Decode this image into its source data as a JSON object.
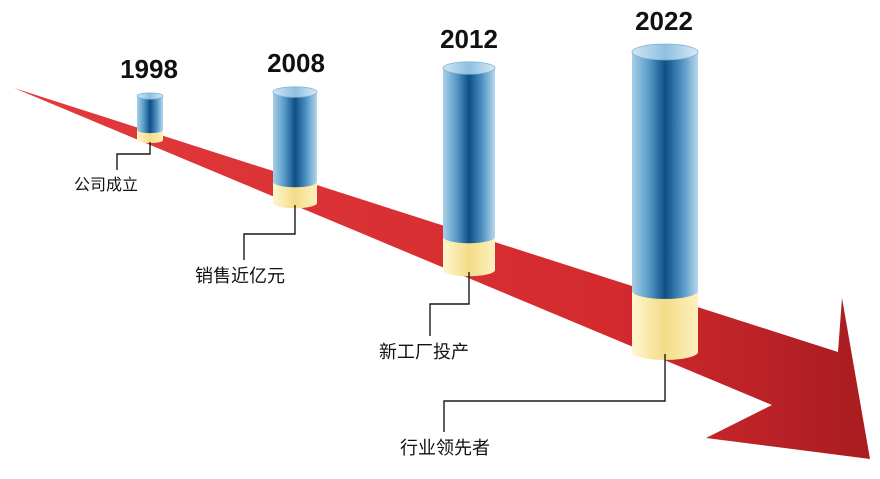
{
  "timeline": [
    {
      "year": "1998",
      "label": "公司成立"
    },
    {
      "year": "2008",
      "label": "销售近亿元"
    },
    {
      "year": "2012",
      "label": "新工厂投产"
    },
    {
      "year": "2022",
      "label": "行业领先者"
    }
  ],
  "colors": {
    "arrow": "#d32a2e",
    "arrow_dark": "#a81c20",
    "cylinder_blue": "#2f7fb3",
    "cylinder_blue_dark": "#0e4f86",
    "cylinder_blue_light": "#a9cfe6",
    "cylinder_yellow": "#f3dc86",
    "cylinder_yellow_light": "#fff6cf"
  }
}
